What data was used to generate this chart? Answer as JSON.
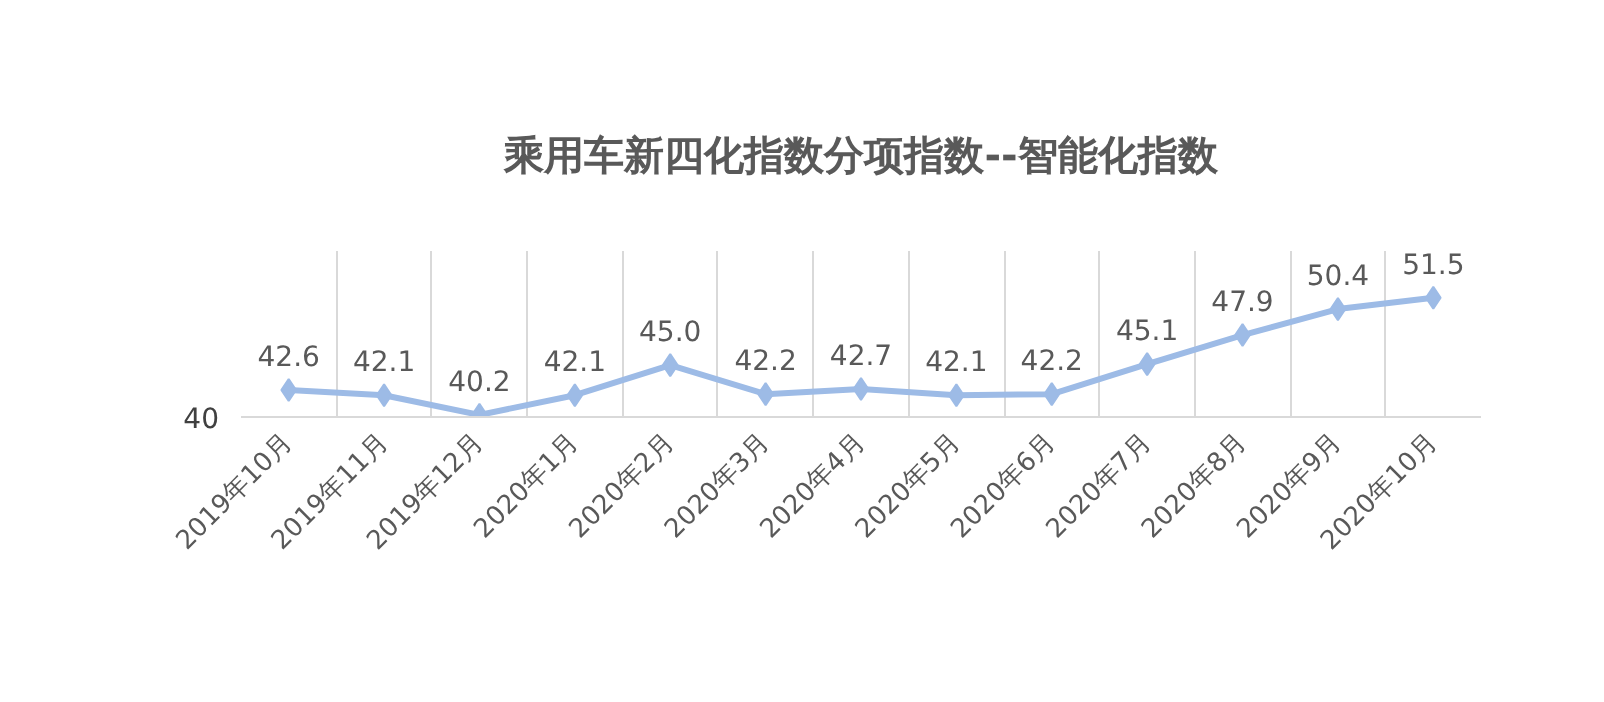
{
  "chart_data": {
    "type": "line",
    "title": "乘用车新四化指数分项指数--智能化指数",
    "categories": [
      "2019年10月",
      "2019年11月",
      "2019年12月",
      "2020年1月",
      "2020年2月",
      "2020年3月",
      "2020年4月",
      "2020年5月",
      "2020年6月",
      "2020年7月",
      "2020年8月",
      "2020年9月",
      "2020年10月"
    ],
    "series": [
      {
        "color": "#9dbbe6",
        "values": [
          42.6,
          42.1,
          40.2,
          42.1,
          45.0,
          42.2,
          42.7,
          42.1,
          42.2,
          45.1,
          47.9,
          50.4,
          51.5
        ],
        "value_labels": [
          "42.6",
          "42.1",
          "40.2",
          "42.1",
          "45.0",
          "42.2",
          "42.7",
          "42.1",
          "42.2",
          "45.1",
          "47.9",
          "50.4",
          "51.5"
        ]
      }
    ],
    "ylim": [
      40,
      56
    ],
    "annotations": [
      "40"
    ],
    "grid": "x",
    "marker": "diamond",
    "line_style": "solid"
  }
}
